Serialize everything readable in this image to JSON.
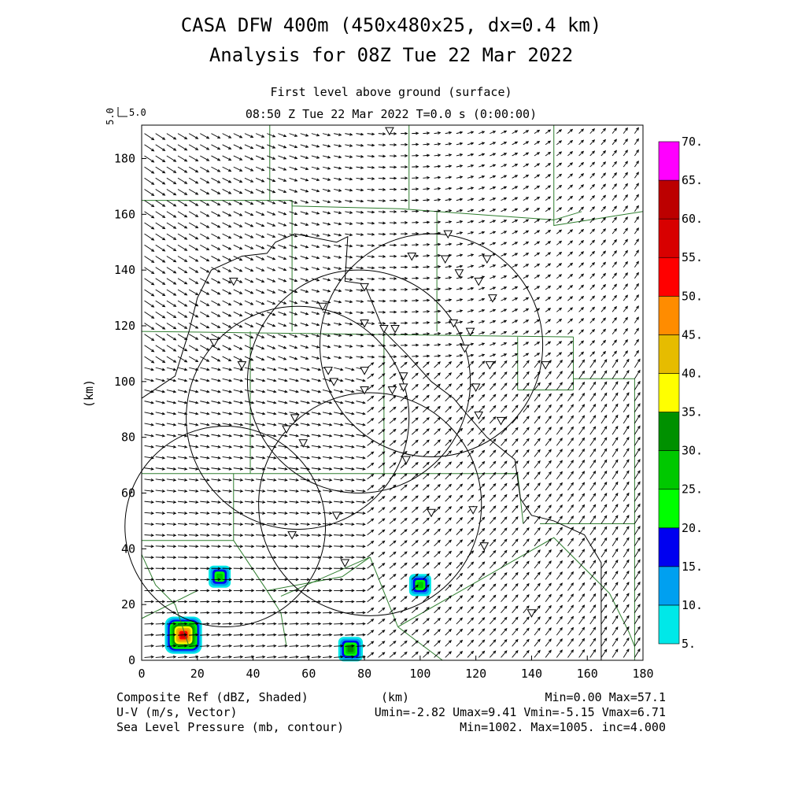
{
  "header": {
    "title_line1": "CASA DFW 400m (450x480x25, dx=0.4 km)",
    "title_line2": "Analysis for 08Z Tue 22 Mar 2022",
    "level_label": "First level above ground (surface)",
    "time_label": "08:50 Z Tue 22 Mar 2022   T=0.0 s (0:00:00)",
    "ref_vector_axis": "5.0",
    "ref_vector_label": "5.0"
  },
  "footer": {
    "field1": "Composite Ref (dBZ, Shaded)",
    "field2": "U-V (m/s, Vector)",
    "field3": "Sea Level Pressure (mb, contour)",
    "xunit": "(km)",
    "stats1": "Min=0.00 Max=57.1",
    "stats2": "Umin=-2.82 Umax=9.41 Vmin=-5.15 Vmax=6.71",
    "stats3": "Min=1002. Max=1005. inc=4.000"
  },
  "chart_data": {
    "type": "heatmap",
    "xlabel": "",
    "ylabel": "(km)",
    "xlim": [
      0,
      180
    ],
    "ylim": [
      0,
      192
    ],
    "x_ticks": [
      "0",
      "20",
      "40",
      "60",
      "80",
      "100",
      "120",
      "140",
      "160",
      "180"
    ],
    "y_ticks": [
      "0",
      "20",
      "40",
      "60",
      "80",
      "100",
      "120",
      "140",
      "160",
      "180"
    ],
    "colorbar": {
      "levels": [
        "5.",
        "10.",
        "15.",
        "20.",
        "25.",
        "30.",
        "35.",
        "40.",
        "45.",
        "50.",
        "55.",
        "60.",
        "65.",
        "70."
      ],
      "colors": [
        "#00e8e8",
        "#00a0f0",
        "#0000f0",
        "#00ff00",
        "#00c800",
        "#009000",
        "#ffff00",
        "#e6bc00",
        "#ff8c00",
        "#ff0000",
        "#d80000",
        "#bc0000",
        "#ff00ff"
      ]
    },
    "radar_rings": [
      {
        "cx": 30,
        "cy": 48,
        "r": 36
      },
      {
        "cx": 56,
        "cy": 87,
        "r": 40
      },
      {
        "cx": 78,
        "cy": 100,
        "r": 40
      },
      {
        "cx": 82,
        "cy": 56,
        "r": 40
      },
      {
        "cx": 104,
        "cy": 113,
        "r": 40
      }
    ],
    "reflectivity_cells": [
      {
        "x": 15,
        "y": 9,
        "peak_dbz": 57.1
      },
      {
        "x": 28,
        "y": 30,
        "peak_dbz": 25
      },
      {
        "x": 100,
        "y": 27,
        "peak_dbz": 27
      },
      {
        "x": 75,
        "y": 4,
        "peak_dbz": 32
      }
    ],
    "stations": [
      [
        89,
        190
      ],
      [
        110,
        153
      ],
      [
        97,
        145
      ],
      [
        109,
        144
      ],
      [
        124,
        144
      ],
      [
        114,
        139
      ],
      [
        121,
        136
      ],
      [
        126,
        130
      ],
      [
        33,
        136
      ],
      [
        80,
        134
      ],
      [
        65,
        127
      ],
      [
        80,
        121
      ],
      [
        87,
        119
      ],
      [
        91,
        119
      ],
      [
        112,
        121
      ],
      [
        118,
        118
      ],
      [
        26,
        114
      ],
      [
        116,
        112
      ],
      [
        36,
        106
      ],
      [
        67,
        104
      ],
      [
        69,
        100
      ],
      [
        80,
        104
      ],
      [
        94,
        102
      ],
      [
        125,
        106
      ],
      [
        145,
        106
      ],
      [
        90,
        97
      ],
      [
        94,
        98
      ],
      [
        80,
        97
      ],
      [
        120,
        98
      ],
      [
        121,
        88
      ],
      [
        129,
        86
      ],
      [
        55,
        87
      ],
      [
        52,
        83
      ],
      [
        58,
        78
      ],
      [
        95,
        72
      ],
      [
        104,
        53
      ],
      [
        119,
        54
      ],
      [
        70,
        52
      ],
      [
        54,
        45
      ],
      [
        123,
        41
      ],
      [
        73,
        35
      ],
      [
        140,
        17
      ]
    ],
    "vector_stats": {
      "umin": -2.82,
      "umax": 9.41,
      "vmin": -5.15,
      "vmax": 6.71
    },
    "reflectivity_stats": {
      "min": 0.0,
      "max": 57.1
    },
    "pressure_stats": {
      "min": 1002,
      "max": 1005,
      "inc": 4.0
    }
  }
}
